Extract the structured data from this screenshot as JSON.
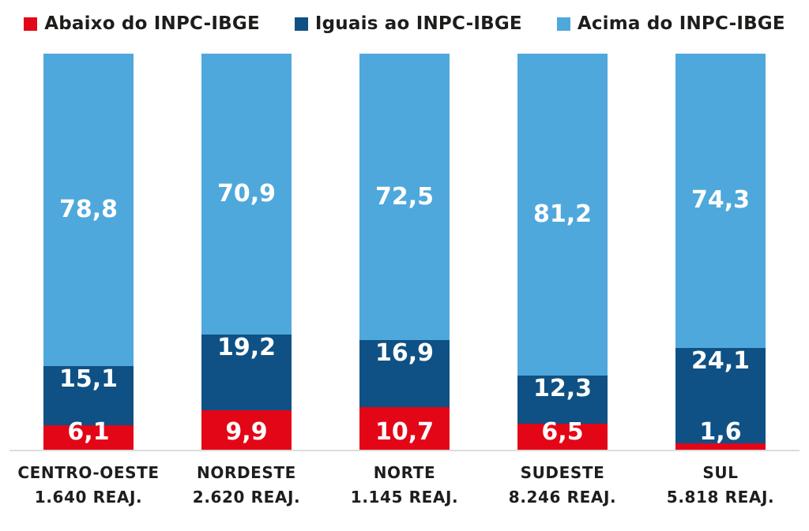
{
  "background": "#ffffff",
  "colors": {
    "abaixo": "#e30617",
    "iguais": "#0f5184",
    "acima": "#4fa8db",
    "axis_line": "#dcdcdc",
    "category_text": "#1d1d1b",
    "value_text": "#ffffff"
  },
  "legend": [
    {
      "label": "Abaixo do INPC-IBGE",
      "color": "#e30617"
    },
    {
      "label": "Iguais ao INPC-IBGE",
      "color": "#0f5184"
    },
    {
      "label": "Acima do INPC-IBGE",
      "color": "#4fa8db"
    }
  ],
  "chart_data": {
    "type": "bar",
    "stacked": true,
    "percent_stacked": true,
    "unit": "%",
    "decimal_separator": ",",
    "categories": [
      "CENTRO-OESTE",
      "NORDESTE",
      "NORTE",
      "SUDESTE",
      "SUL"
    ],
    "category_sublabels": [
      "1.640 REAJ.",
      "2.620 REAJ.",
      "1.145 REAJ.",
      "8.246 REAJ.",
      "5.818 REAJ."
    ],
    "series": [
      {
        "name": "Abaixo do INPC-IBGE",
        "color": "#e30617",
        "values": [
          6.1,
          9.9,
          10.7,
          6.5,
          1.6
        ]
      },
      {
        "name": "Iguais ao INPC-IBGE",
        "color": "#0f5184",
        "values": [
          15.1,
          19.2,
          16.9,
          12.3,
          24.1
        ]
      },
      {
        "name": "Acima do INPC-IBGE",
        "color": "#4fa8db",
        "values": [
          78.8,
          70.9,
          72.5,
          81.2,
          74.3
        ]
      }
    ],
    "ylim": [
      0,
      100
    ],
    "grid": false,
    "axis_ticks": false,
    "legend_position": "top"
  }
}
